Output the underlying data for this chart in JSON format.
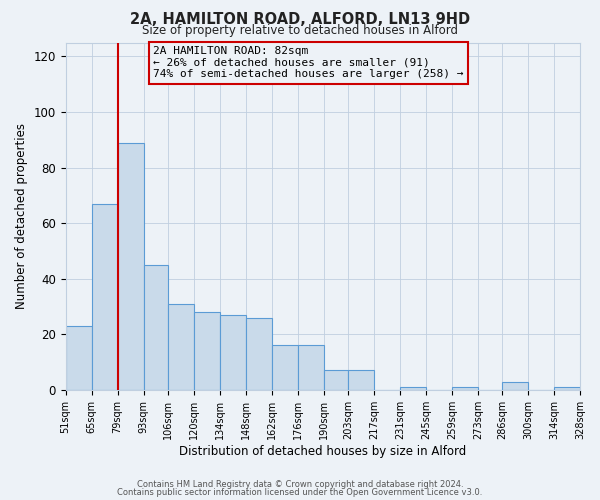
{
  "title": "2A, HAMILTON ROAD, ALFORD, LN13 9HD",
  "subtitle": "Size of property relative to detached houses in Alford",
  "xlabel": "Distribution of detached houses by size in Alford",
  "ylabel": "Number of detached properties",
  "bar_left_edges": [
    51,
    65,
    79,
    93,
    106,
    120,
    134,
    148,
    162,
    176,
    190,
    203,
    217,
    231,
    245,
    259,
    273,
    286,
    300,
    314
  ],
  "bar_widths": [
    14,
    14,
    14,
    13,
    14,
    14,
    14,
    14,
    14,
    14,
    13,
    14,
    14,
    14,
    14,
    14,
    13,
    14,
    14,
    14
  ],
  "bar_heights": [
    23,
    67,
    89,
    45,
    31,
    28,
    27,
    26,
    16,
    16,
    7,
    7,
    0,
    1,
    0,
    1,
    0,
    3,
    0,
    1
  ],
  "tick_labels": [
    "51sqm",
    "65sqm",
    "79sqm",
    "93sqm",
    "106sqm",
    "120sqm",
    "134sqm",
    "148sqm",
    "162sqm",
    "176sqm",
    "190sqm",
    "203sqm",
    "217sqm",
    "231sqm",
    "245sqm",
    "259sqm",
    "273sqm",
    "286sqm",
    "300sqm",
    "314sqm",
    "328sqm"
  ],
  "bar_color": "#c9daea",
  "bar_edge_color": "#5b9bd5",
  "vline_x": 79,
  "vline_color": "#cc0000",
  "annotation_title": "2A HAMILTON ROAD: 82sqm",
  "annotation_line1": "← 26% of detached houses are smaller (91)",
  "annotation_line2": "74% of semi-detached houses are larger (258) →",
  "annotation_box_color": "#cc0000",
  "ylim": [
    0,
    125
  ],
  "yticks": [
    0,
    20,
    40,
    60,
    80,
    100,
    120
  ],
  "background_color": "#edf2f7",
  "plot_bg_color": "#edf2f7",
  "footer1": "Contains HM Land Registry data © Crown copyright and database right 2024.",
  "footer2": "Contains public sector information licensed under the Open Government Licence v3.0."
}
